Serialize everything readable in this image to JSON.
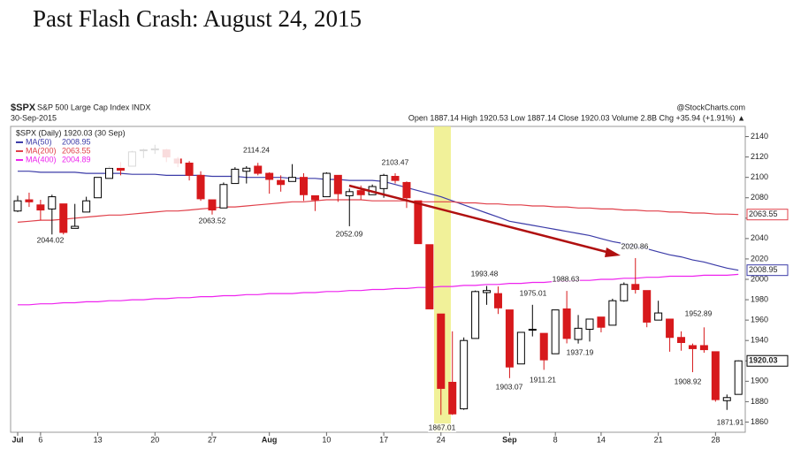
{
  "chart_data": {
    "type": "candlestick",
    "title": "Past Flash Crash: August 24, 2015",
    "symbol": "$SPX",
    "index_name": "S&P 500 Large Cap Index INDX",
    "source": "@StockCharts.com",
    "date": "30-Sep-2015",
    "quote": "Open 1887.14 High 1920.53 Low 1887.14 Close 1920.03 Volume 2.8B Chg +35.94 (+1.91%) ▲",
    "price_legend": "$SPX (Daily) 1920.03 (30 Sep)",
    "categories": [
      "Jul",
      null,
      "6",
      null,
      null,
      null,
      null,
      "13",
      null,
      null,
      null,
      null,
      "20",
      null,
      null,
      null,
      null,
      "27",
      null,
      null,
      null,
      null,
      "Aug",
      null,
      null,
      null,
      null,
      "10",
      null,
      null,
      null,
      null,
      "17",
      null,
      null,
      null,
      null,
      "24",
      null,
      null,
      null,
      null,
      null,
      "Sep",
      null,
      null,
      null,
      "8",
      null,
      null,
      null,
      "14",
      null,
      null,
      null,
      null,
      "21",
      null,
      null,
      null,
      null,
      "28",
      null,
      null
    ],
    "open": [
      2067,
      2078,
      2073,
      2069,
      2074,
      2050,
      2066,
      2080,
      2099,
      2109,
      2111,
      2127,
      2127,
      2127,
      2118,
      2114,
      2102,
      2078,
      2070,
      2094,
      2106,
      2111,
      2104,
      2097,
      2096,
      2100,
      2082,
      2081,
      2102,
      2082,
      2087,
      2083,
      2089,
      2101,
      2095,
      2077,
      2034,
      1966,
      1899,
      1873,
      1942,
      1987,
      1986,
      1970,
      1917,
      1951,
      1947,
      1927,
      1971,
      1941,
      1951,
      1963,
      1955,
      1979,
      1995,
      1989,
      1960,
      1961,
      1943,
      1935,
      1935,
      1929,
      1881,
      1887.14
    ],
    "high": [
      2082,
      2085,
      2078,
      2083,
      2074,
      2074,
      2081,
      2099,
      2111,
      2115,
      2126,
      2128,
      2132,
      2128,
      2120,
      2116,
      2106,
      2078,
      2095,
      2110,
      2111,
      2114.24,
      2105,
      2102,
      2113,
      2104,
      2082,
      2105,
      2102,
      2089,
      2092,
      2093,
      2103.47,
      2104,
      2096,
      2077,
      2034,
      1966,
      1949,
      1943,
      1989,
      1993.48,
      1993,
      1970,
      1948,
      1975.01,
      1947,
      1970,
      1988.63,
      1965,
      1961,
      1963,
      1981,
      1997,
      2020.86,
      1989,
      1979,
      1961,
      1949,
      1937,
      1952.89,
      1929,
      1887,
      1920.53
    ],
    "low": [
      2066,
      2071,
      2058,
      2044,
      2044.02,
      2050,
      2066,
      2080,
      2099,
      2102,
      2111,
      2119,
      2123,
      2115,
      2110,
      2097,
      2077,
      2063.52,
      2070,
      2094,
      2094,
      2102,
      2084,
      2086,
      2096,
      2077,
      2067,
      2081,
      2076,
      2052.09,
      2078,
      2083,
      2080,
      2094,
      2070,
      2035,
      1971,
      1867.01,
      1867,
      1872,
      1942,
      1975,
      1966,
      1903.07,
      1917,
      1944,
      1911.21,
      1927,
      1937.19,
      1937,
      1939,
      1948,
      1955,
      1978,
      1986,
      1953,
      1960,
      1929,
      1930,
      1908.92,
      1928,
      1880,
      1871.91,
      1887.14
    ],
    "close": [
      2077,
      2076,
      2068,
      2081,
      2046,
      2052,
      2077,
      2100,
      2109,
      2107,
      2125,
      2127,
      2128,
      2120,
      2114,
      2102,
      2079,
      2068,
      2093,
      2108,
      2109,
      2104,
      2098,
      2093,
      2100,
      2083,
      2078,
      2104,
      2084,
      2086,
      2083,
      2091,
      2102,
      2097,
      2080,
      2035,
      1971,
      1893,
      1868,
      1940,
      1988,
      1989,
      1972,
      1914,
      1948,
      1951,
      1921,
      1970,
      1942,
      1952,
      1961,
      1953,
      1979,
      1995,
      1990,
      1958,
      1967,
      1943,
      1938,
      1932,
      1931,
      1882,
      1884,
      1920.03
    ],
    "up_color": "#000000",
    "down_color": "#d7191c",
    "series": [
      {
        "name": "MA(50)",
        "color": "#3c3ca8",
        "values": [
          2106,
          2106,
          2105,
          2105,
          2105,
          2105,
          2104,
          2104,
          2104,
          2104,
          2103,
          2103,
          2103,
          2102,
          2102,
          2102,
          2102,
          2101,
          2101,
          2101,
          2100,
          2100,
          2100,
          2100,
          2099,
          2099,
          2099,
          2098,
          2098,
          2097,
          2097,
          2097,
          2096,
          2093,
          2090,
          2087,
          2084,
          2081,
          2077,
          2073,
          2069,
          2065,
          2061,
          2057,
          2055,
          2053,
          2051,
          2049,
          2047,
          2045,
          2043,
          2040,
          2037,
          2035,
          2032,
          2030,
          2027,
          2024,
          2022,
          2019,
          2017,
          2014,
          2011,
          2008.95
        ]
      },
      {
        "name": "MA(200)",
        "color": "#e0404a",
        "values": [
          2056,
          2057,
          2058,
          2058,
          2059,
          2060,
          2061,
          2062,
          2063,
          2063,
          2064,
          2065,
          2066,
          2067,
          2067,
          2068,
          2069,
          2070,
          2071,
          2071,
          2072,
          2073,
          2074,
          2075,
          2076,
          2076,
          2077,
          2078,
          2078,
          2078,
          2078,
          2077,
          2077,
          2077,
          2077,
          2076,
          2076,
          2076,
          2076,
          2075,
          2075,
          2074,
          2074,
          2073,
          2073,
          2072,
          2072,
          2071,
          2071,
          2070,
          2070,
          2069,
          2069,
          2068,
          2068,
          2067,
          2067,
          2066,
          2066,
          2065,
          2065,
          2064,
          2064,
          2063.55
        ]
      },
      {
        "name": "MA(400)",
        "color": "#ee22ee",
        "values": [
          1975,
          1975,
          1976,
          1976,
          1977,
          1977,
          1978,
          1978,
          1979,
          1979,
          1980,
          1980,
          1981,
          1981,
          1982,
          1982,
          1983,
          1983,
          1984,
          1984,
          1985,
          1985,
          1986,
          1986,
          1986,
          1987,
          1987,
          1988,
          1988,
          1989,
          1989,
          1990,
          1990,
          1991,
          1991,
          1992,
          1992,
          1993,
          1993,
          1994,
          1994,
          1995,
          1995,
          1996,
          1996,
          1997,
          1997,
          1998,
          1998,
          1999,
          1999,
          2000,
          2000,
          2001,
          2001,
          2002,
          2002,
          2003,
          2003,
          2003,
          2004,
          2004,
          2004,
          2004.89
        ]
      }
    ],
    "annotations": [
      "2044.02",
      "2114.24",
      "2063.52",
      "2052.09",
      "2103.47",
      "1867.01",
      "1993.48",
      "1975.01",
      "1903.07",
      "1911.21",
      "1988.63",
      "1937.19",
      "2020.86",
      "1952.89",
      "1908.92",
      "1871.91"
    ],
    "ylim": [
      1850,
      2150
    ],
    "yticks": [
      1860,
      1880,
      1900,
      1920,
      1940,
      1960,
      1980,
      2000,
      2020,
      2040,
      2060,
      2080,
      2100,
      2120,
      2140
    ],
    "grid": false
  }
}
